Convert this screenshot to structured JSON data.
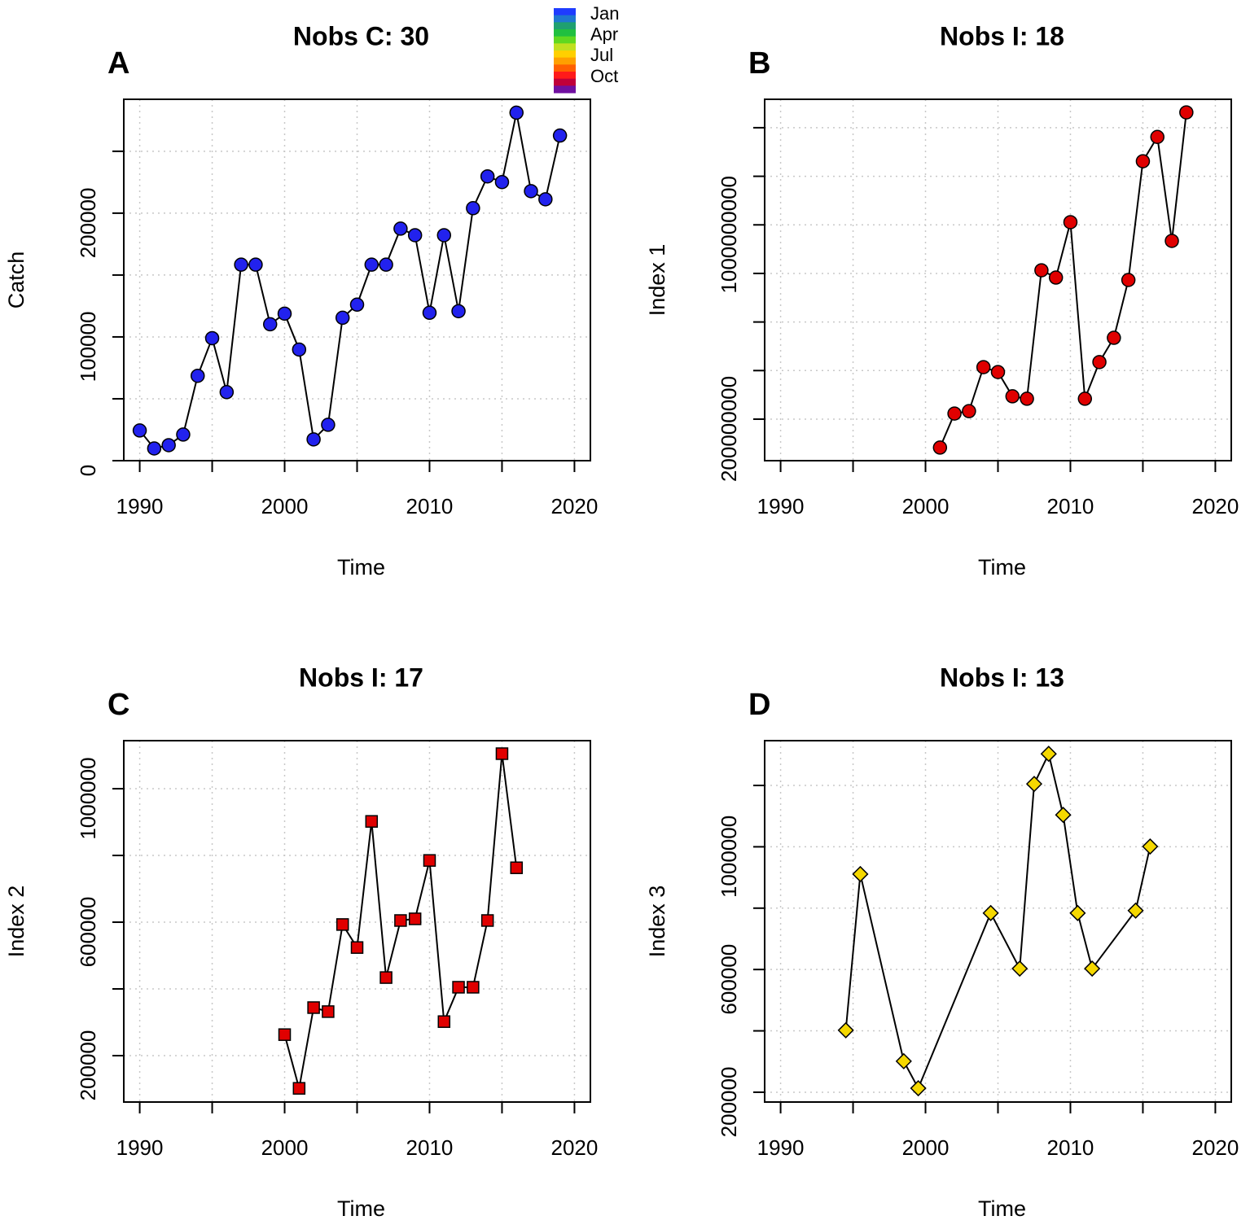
{
  "chart_data": [
    {
      "type": "line",
      "panel_label": "A",
      "title": "Nobs C: 30",
      "x_label": "Time",
      "y_label": "Catch",
      "x": [
        1990,
        1991,
        1992,
        1993,
        1994,
        1995,
        1996,
        1997,
        1998,
        1999,
        2000,
        2001,
        2002,
        2003,
        2004,
        2005,
        2006,
        2007,
        2008,
        2009,
        2010,
        2011,
        2012,
        2013,
        2014,
        2015,
        2016,
        2017,
        2018,
        2019
      ],
      "values": [
        24400,
        9900,
        12500,
        21100,
        68600,
        99000,
        55400,
        158400,
        158400,
        110200,
        118800,
        89800,
        17200,
        29000,
        115500,
        126100,
        158400,
        158400,
        187500,
        182200,
        119500,
        182200,
        120800,
        204000,
        229700,
        225100,
        281200,
        217800,
        211200,
        262700
      ],
      "color": "#2222ee",
      "marker": "circle",
      "xlim": [
        1988.9,
        2021.1
      ],
      "xticks": [
        1990,
        2000,
        2010,
        2020
      ],
      "x_minor_ticks": [
        1995,
        2005,
        2015
      ],
      "ylim": [
        0,
        292000
      ],
      "yticks": [
        0,
        100000,
        200000
      ],
      "y_minor_ticks": [
        50000,
        150000,
        250000
      ],
      "grid": true,
      "colorbar": {
        "labels": [
          "Jan",
          "Apr",
          "Jul",
          "Oct"
        ],
        "colors": [
          "#1f3cff",
          "#1f78d0",
          "#1fa070",
          "#20c040",
          "#60d820",
          "#c0e020",
          "#ffd000",
          "#ffa000",
          "#ff6000",
          "#ff1a1a",
          "#c0003a",
          "#7010a0"
        ]
      }
    },
    {
      "type": "line",
      "panel_label": "B",
      "title": "Nobs I: 18",
      "x_label": "Time",
      "y_label": "Index 1",
      "x": [
        2001,
        2002,
        2003,
        2004,
        2005,
        2006,
        2007,
        2008,
        2009,
        2010,
        2011,
        2012,
        2013,
        2014,
        2015,
        2016,
        2017,
        2018
      ],
      "values": [
        83000000,
        223000000,
        233000000,
        414000000,
        394000000,
        294000000,
        284000000,
        813000000,
        783000000,
        1011000000,
        284000000,
        435000000,
        535000000,
        773000000,
        1262000000,
        1362000000,
        934000000,
        1463000000
      ],
      "color": "#e00000",
      "marker": "circle",
      "xlim": [
        1988.9,
        2021.1
      ],
      "xticks": [
        1990,
        2000,
        2010,
        2020
      ],
      "x_minor_ticks": [
        1995,
        2005,
        2015
      ],
      "ylim": [
        29000000,
        1517000000
      ],
      "yticks": [
        200000000,
        1000000000
      ],
      "y_minor_ticks": [
        400000000,
        600000000,
        800000000,
        1200000000,
        1400000000
      ],
      "grid": true
    },
    {
      "type": "line",
      "panel_label": "C",
      "title": "Nobs I: 17",
      "x_label": "Time",
      "y_label": "Index 2",
      "x": [
        2000,
        2001,
        2002,
        2003,
        2004,
        2005,
        2006,
        2007,
        2008,
        2009,
        2010,
        2011,
        2012,
        2013,
        2014,
        2015,
        2016
      ],
      "values": [
        263000,
        102000,
        344000,
        332000,
        593000,
        524000,
        902000,
        434000,
        605000,
        610000,
        785000,
        302000,
        405000,
        405000,
        605000,
        1105000,
        763000
      ],
      "color": "#e00000",
      "marker": "square",
      "xlim": [
        1988.9,
        2021.1
      ],
      "xticks": [
        1990,
        2000,
        2010,
        2020
      ],
      "x_minor_ticks": [
        1995,
        2005,
        2015
      ],
      "ylim": [
        61000,
        1144000
      ],
      "yticks": [
        200000,
        600000,
        1000000
      ],
      "y_minor_ticks": [
        400000,
        800000
      ],
      "grid": true
    },
    {
      "type": "line",
      "panel_label": "D",
      "title": "Nobs I: 13",
      "x_label": "Time",
      "y_label": "Index 3",
      "x": [
        1994.5,
        1995.5,
        1998.5,
        1999.5,
        2004.5,
        2006.5,
        2007.5,
        2008.5,
        2009.5,
        2010.5,
        2011.5,
        2014.5,
        2015.5
      ],
      "values": [
        402000,
        911000,
        301000,
        213000,
        784000,
        603000,
        1205000,
        1303000,
        1104000,
        784000,
        603000,
        792000,
        1001000
      ],
      "color": "#f5d800",
      "marker": "diamond",
      "xlim": [
        1988.9,
        2021.1
      ],
      "xticks": [
        1990,
        2000,
        2010,
        2020
      ],
      "x_minor_ticks": [
        1995,
        2005,
        2015
      ],
      "ylim": [
        168000,
        1346000
      ],
      "yticks": [
        200000,
        600000,
        1000000
      ],
      "y_minor_ticks": [
        400000,
        800000,
        1200000
      ],
      "grid": true
    }
  ]
}
